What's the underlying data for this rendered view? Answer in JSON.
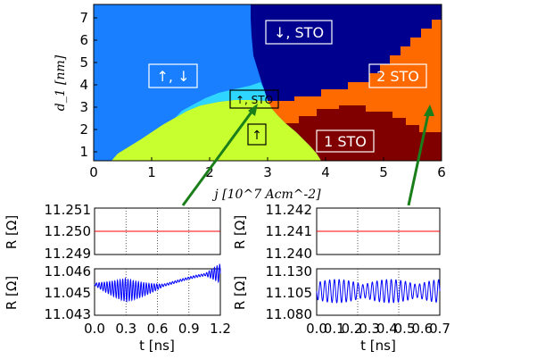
{
  "chart_data": [
    {
      "type": "heatmap",
      "name": "phase-diagram",
      "xlabel": "j [10^7 Acm^-2]",
      "ylabel": "d_1 [nm]",
      "xlim": [
        0,
        6
      ],
      "ylim": [
        0.6,
        7.6
      ],
      "xticks": [
        0,
        1,
        2,
        3,
        4,
        5,
        6
      ],
      "yticks": [
        1,
        2,
        3,
        4,
        5,
        6,
        7
      ],
      "region_labels": [
        "↓, STO",
        "↑, ↓",
        "2 STO",
        "↑, STO",
        "↑",
        "1 STO"
      ],
      "colors": {
        "up_down": "#1a7fff",
        "down_sto": "#00008f",
        "two_sto": "#ff6a00",
        "one_sto": "#800000",
        "up": "#c8ff2e",
        "up_sto": "#2ed5ff",
        "arrow": "#1a7f1a"
      }
    },
    {
      "type": "line",
      "name": "top-left-flat",
      "ylabel": "R [Ω]",
      "yticks": [
        "11.251",
        "11.250",
        "11.249"
      ],
      "ylim": [
        11.249,
        11.251
      ],
      "xlim": [
        0,
        1.2
      ],
      "series": [
        {
          "name": "R",
          "color": "#ff0000",
          "values": [
            11.25,
            11.25
          ]
        }
      ]
    },
    {
      "type": "line",
      "name": "bottom-left-osc",
      "xlabel": "t [ns]",
      "ylabel": "R [Ω]",
      "xticks": [
        "0.0",
        "0.3",
        "0.6",
        "0.9",
        "1.2"
      ],
      "yticks": [
        "11.046",
        "11.045",
        "11.043"
      ],
      "ylim": [
        11.043,
        11.046
      ],
      "xlim": [
        0,
        1.2
      ],
      "series": [
        {
          "name": "R",
          "color": "#0000ff"
        }
      ]
    },
    {
      "type": "line",
      "name": "top-right-flat",
      "ylabel": "R [Ω]",
      "yticks": [
        "11.242",
        "11.241",
        "11.240"
      ],
      "ylim": [
        11.24,
        11.242
      ],
      "xlim": [
        0,
        0.7
      ],
      "series": [
        {
          "name": "R",
          "color": "#ff0000",
          "values": [
            11.241,
            11.241
          ]
        }
      ]
    },
    {
      "type": "line",
      "name": "bottom-right-osc",
      "xlabel": "t [ns]",
      "ylabel": "R [Ω]",
      "xticks": [
        "0.0",
        "0.1",
        "0.2",
        "0.3",
        "0.4",
        "0.5",
        "0.6",
        "0.7"
      ],
      "yticks": [
        "11.130",
        "11.105",
        "11.080"
      ],
      "ylim": [
        11.08,
        11.13
      ],
      "xlim": [
        0,
        0.7
      ],
      "series": [
        {
          "name": "R",
          "color": "#0000ff"
        }
      ]
    }
  ]
}
